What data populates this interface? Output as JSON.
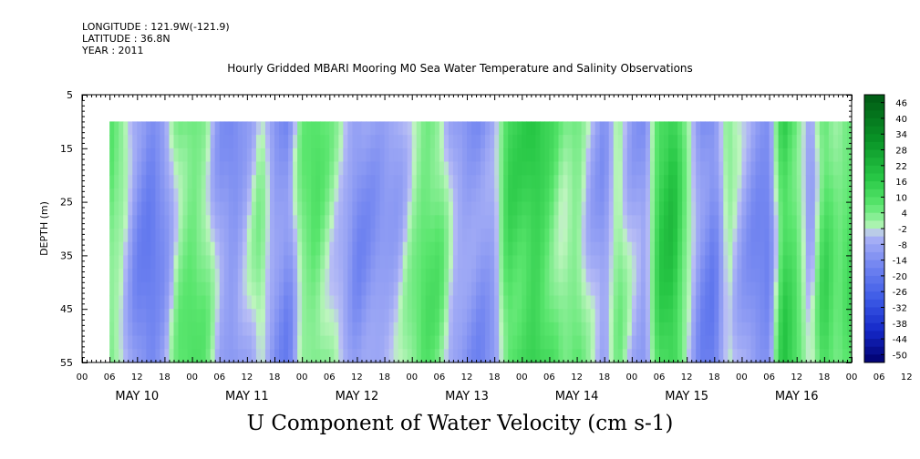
{
  "header": {
    "longitude": "LONGITUDE : 121.9W(-121.9)",
    "latitude": "LATITUDE : 36.8N",
    "year": "YEAR : 2011",
    "title": "Hourly Gridded MBARI Mooring M0 Sea Water Temperature and Salinity Observations"
  },
  "chart_data": {
    "type": "heatmap",
    "title": "Hourly Gridded MBARI Mooring M0 Sea Water Temperature and Salinity Observations",
    "xlabel": "",
    "ylabel": "DEPTH (m)",
    "caption": "U Component of Water Velocity (cm s-1)",
    "ylim": [
      5,
      55
    ],
    "y_inverted": true,
    "y_ticks": [
      5,
      15,
      25,
      35,
      45,
      55
    ],
    "x_hour_labels": [
      "00",
      "06",
      "12",
      "18",
      "00",
      "06",
      "12",
      "18",
      "00",
      "06",
      "12",
      "18",
      "00",
      "06",
      "12",
      "18",
      "00",
      "06",
      "12",
      "18",
      "00",
      "06",
      "12",
      "18",
      "00",
      "06",
      "12",
      "18",
      "00",
      "06",
      "12",
      "18",
      "00"
    ],
    "x_day_labels": [
      "MAY 10",
      "MAY 11",
      "MAY 12",
      "MAY 13",
      "MAY 14",
      "MAY 15",
      "MAY 16"
    ],
    "x_range_hours": [
      0,
      168
    ],
    "data_start_hour": 6,
    "data_depth_range": [
      10,
      55
    ],
    "colorbar": {
      "labels": [
        "46",
        "40",
        "34",
        "28",
        "22",
        "16",
        "10",
        "4",
        "-2",
        "-8",
        "-14",
        "-20",
        "-26",
        "-32",
        "-38",
        "-44",
        "-50"
      ],
      "range": [
        -50,
        52
      ]
    },
    "value_profile": [
      {
        "hour": 6,
        "u": 8
      },
      {
        "hour": 9,
        "u": 2
      },
      {
        "hour": 12,
        "u": -10
      },
      {
        "hour": 15,
        "u": -14
      },
      {
        "hour": 18,
        "u": -8
      },
      {
        "hour": 21,
        "u": 6
      },
      {
        "hour": 24,
        "u": 10
      },
      {
        "hour": 27,
        "u": 6
      },
      {
        "hour": 30,
        "u": -6
      },
      {
        "hour": 33,
        "u": -10
      },
      {
        "hour": 36,
        "u": -4
      },
      {
        "hour": 39,
        "u": 4
      },
      {
        "hour": 42,
        "u": -8
      },
      {
        "hour": 45,
        "u": -12
      },
      {
        "hour": 48,
        "u": 6
      },
      {
        "hour": 51,
        "u": 10
      },
      {
        "hour": 54,
        "u": 4
      },
      {
        "hour": 57,
        "u": -2
      },
      {
        "hour": 60,
        "u": -10
      },
      {
        "hour": 63,
        "u": -8
      },
      {
        "hour": 66,
        "u": -6
      },
      {
        "hour": 69,
        "u": -4
      },
      {
        "hour": 72,
        "u": 4
      },
      {
        "hour": 75,
        "u": 10
      },
      {
        "hour": 78,
        "u": 8
      },
      {
        "hour": 81,
        "u": -4
      },
      {
        "hour": 84,
        "u": -8
      },
      {
        "hour": 87,
        "u": -10
      },
      {
        "hour": 90,
        "u": -6
      },
      {
        "hour": 93,
        "u": 14
      },
      {
        "hour": 96,
        "u": 14
      },
      {
        "hour": 99,
        "u": 18
      },
      {
        "hour": 102,
        "u": 12
      },
      {
        "hour": 105,
        "u": 4
      },
      {
        "hour": 108,
        "u": 8
      },
      {
        "hour": 111,
        "u": -2
      },
      {
        "hour": 114,
        "u": -8
      },
      {
        "hour": 117,
        "u": 6
      },
      {
        "hour": 120,
        "u": -4
      },
      {
        "hour": 123,
        "u": -8
      },
      {
        "hour": 126,
        "u": 16
      },
      {
        "hour": 129,
        "u": 20
      },
      {
        "hour": 132,
        "u": 4
      },
      {
        "hour": 135,
        "u": -10
      },
      {
        "hour": 138,
        "u": -14
      },
      {
        "hour": 141,
        "u": 4
      },
      {
        "hour": 144,
        "u": -4
      },
      {
        "hour": 147,
        "u": -10
      },
      {
        "hour": 150,
        "u": -12
      },
      {
        "hour": 153,
        "u": 18
      },
      {
        "hour": 156,
        "u": 10
      },
      {
        "hour": 159,
        "u": -6
      },
      {
        "hour": 162,
        "u": 14
      },
      {
        "hour": 165,
        "u": 6
      },
      {
        "hour": 168,
        "u": 12
      }
    ]
  }
}
